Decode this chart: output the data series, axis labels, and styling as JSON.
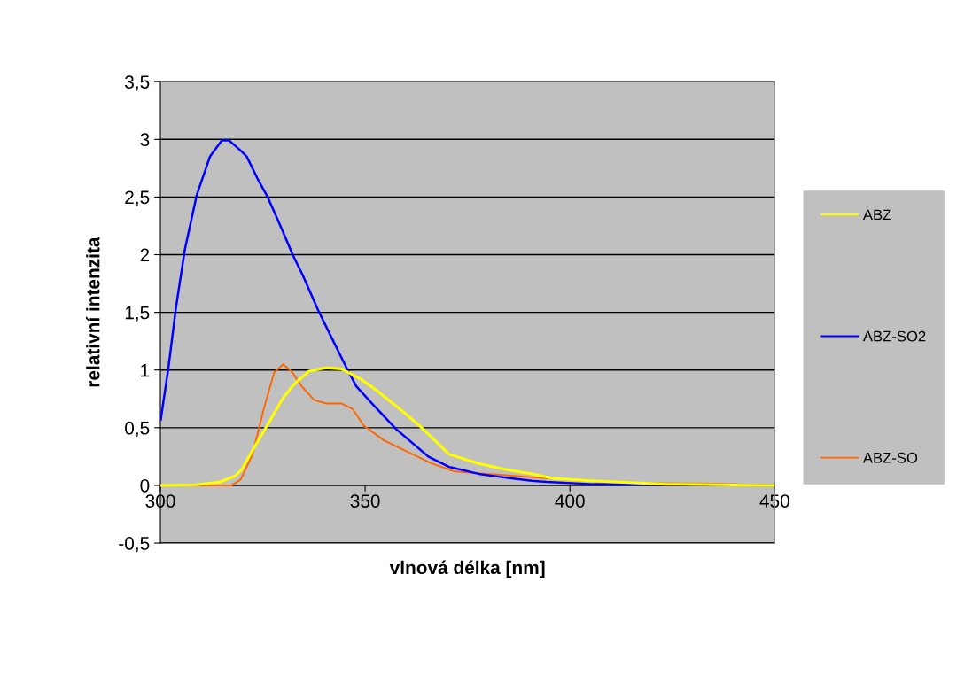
{
  "chart_data": {
    "type": "line",
    "xlabel": "vlnová délka [nm]",
    "ylabel": "relativní intenzita",
    "xlim": [
      300,
      450
    ],
    "xticks": [
      300,
      350,
      400,
      450
    ],
    "ylim": [
      -0.5,
      3.5
    ],
    "yticks": [
      {
        "value": -0.5,
        "label": "-0,5"
      },
      0,
      {
        "value": 0.5,
        "label": "0,5"
      },
      1,
      {
        "value": 1.5,
        "label": "1,5"
      },
      2,
      {
        "value": 2.5,
        "label": "2,5"
      },
      3,
      {
        "value": 3.5,
        "label": "3,5"
      }
    ],
    "grid": "y",
    "legend": "right",
    "marker": "none",
    "line_style": "solid",
    "series": [
      {
        "name": "ABZ",
        "color": "#ffff00",
        "x": [
          300,
          308.9,
          314.6,
          318.2,
          319.7,
          322.6,
          326.9,
          329.8,
          332.7,
          336.3,
          340.6,
          344.2,
          348.5,
          352.2,
          358.2,
          363.2,
          370.5,
          377.7,
          384,
          390.7,
          395.8,
          405,
          423.2,
          450
        ],
        "values": [
          0,
          0.005,
          0.03,
          0.08,
          0.13,
          0.31,
          0.57,
          0.75,
          0.88,
          0.99,
          1.02,
          1.01,
          0.93,
          0.84,
          0.67,
          0.52,
          0.27,
          0.19,
          0.14,
          0.1,
          0.06,
          0.04,
          0.01,
          0
        ]
      },
      {
        "name": "ABZ-SO2",
        "color": "#0000ff",
        "x": [
          300.1,
          302,
          303.8,
          306,
          308.9,
          312.1,
          315,
          316.8,
          319.7,
          321.1,
          324,
          326.2,
          329.8,
          332.3,
          334.8,
          338.5,
          341.4,
          345.3,
          347.8,
          352.2,
          357.5,
          365.4,
          370.5,
          377.7,
          385.7,
          390.7,
          394.3,
          405.8,
          450
        ],
        "values": [
          0.57,
          1.03,
          1.54,
          2.05,
          2.52,
          2.85,
          2.99,
          2.99,
          2.9,
          2.85,
          2.64,
          2.5,
          2.21,
          2.0,
          1.82,
          1.52,
          1.31,
          1.03,
          0.86,
          0.69,
          0.49,
          0.25,
          0.16,
          0.1,
          0.06,
          0.04,
          0.03,
          0.01,
          0
        ]
      },
      {
        "name": "ABZ-SO",
        "color": "#ff6600",
        "x": [
          300,
          317.4,
          319.6,
          322.4,
          325.3,
          327.8,
          330,
          332.2,
          334.7,
          337.6,
          340.5,
          344.2,
          347,
          349.6,
          354.6,
          360.4,
          366.2,
          371.9,
          383.5,
          390.7,
          402.9,
          417.3,
          435,
          450
        ],
        "values": [
          0,
          0,
          0.05,
          0.26,
          0.67,
          0.98,
          1.05,
          0.98,
          0.85,
          0.74,
          0.71,
          0.71,
          0.66,
          0.52,
          0.39,
          0.29,
          0.19,
          0.12,
          0.09,
          0.07,
          0.04,
          0.02,
          0.015,
          0
        ]
      }
    ]
  }
}
